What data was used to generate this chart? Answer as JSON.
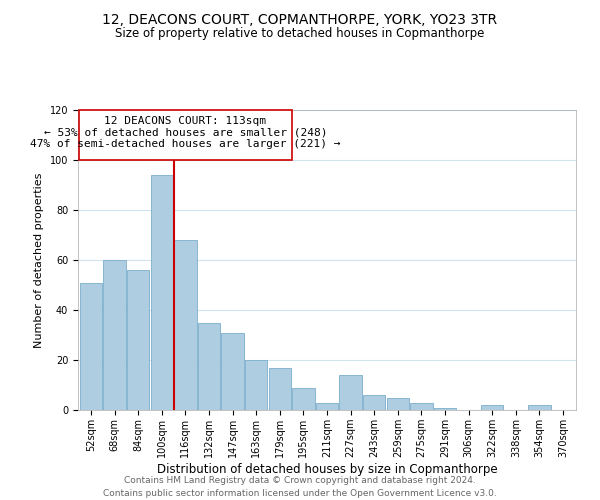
{
  "title": "12, DEACONS COURT, COPMANTHORPE, YORK, YO23 3TR",
  "subtitle": "Size of property relative to detached houses in Copmanthorpe",
  "xlabel": "Distribution of detached houses by size in Copmanthorpe",
  "ylabel": "Number of detached properties",
  "bin_labels": [
    "52sqm",
    "68sqm",
    "84sqm",
    "100sqm",
    "116sqm",
    "132sqm",
    "147sqm",
    "163sqm",
    "179sqm",
    "195sqm",
    "211sqm",
    "227sqm",
    "243sqm",
    "259sqm",
    "275sqm",
    "291sqm",
    "306sqm",
    "322sqm",
    "338sqm",
    "354sqm",
    "370sqm"
  ],
  "bar_heights": [
    51,
    60,
    56,
    94,
    68,
    35,
    31,
    20,
    17,
    9,
    3,
    14,
    6,
    5,
    3,
    1,
    0,
    2,
    0,
    2,
    0
  ],
  "bar_color": "#aecde1",
  "bar_edge_color": "#7aaecc",
  "vline_x": 3.5,
  "property_line_label": "12 DEACONS COURT: 113sqm",
  "annotation_line1": "← 53% of detached houses are smaller (248)",
  "annotation_line2": "47% of semi-detached houses are larger (221) →",
  "vline_color": "#cc0000",
  "annotation_box_edge": "#cc0000",
  "ylim": [
    0,
    120
  ],
  "yticks": [
    0,
    20,
    40,
    60,
    80,
    100,
    120
  ],
  "footer_line1": "Contains HM Land Registry data © Crown copyright and database right 2024.",
  "footer_line2": "Contains public sector information licensed under the Open Government Licence v3.0.",
  "bg_color": "#ffffff",
  "grid_color": "#d0e4f0",
  "title_fontsize": 10,
  "subtitle_fontsize": 8.5,
  "xlabel_fontsize": 8.5,
  "ylabel_fontsize": 8,
  "tick_fontsize": 7,
  "annotation_fontsize": 8,
  "footer_fontsize": 6.5
}
